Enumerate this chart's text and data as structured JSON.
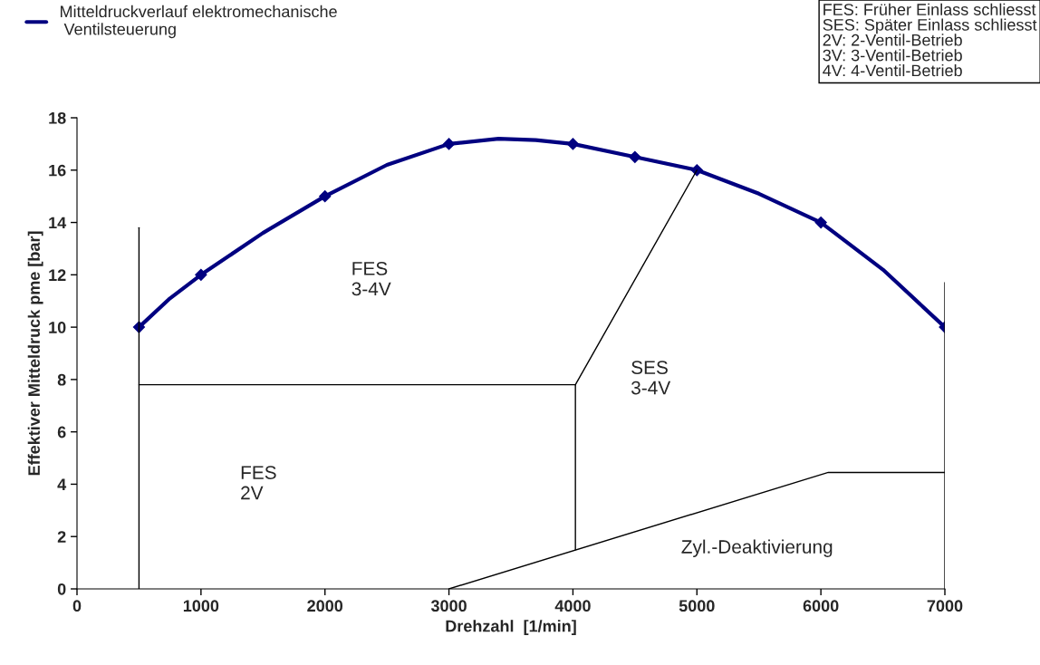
{
  "chart_data": {
    "type": "line",
    "xlabel": "Drehzahl  [1/min]",
    "ylabel": "Effektiver Mitteldruck pme [bar]",
    "xlim": [
      0,
      7000
    ],
    "xticks": [
      0,
      1000,
      2000,
      3000,
      4000,
      5000,
      6000,
      7000
    ],
    "ylim": [
      0,
      18
    ],
    "yticks": [
      0,
      2,
      4,
      6,
      8,
      10,
      12,
      14,
      16,
      18
    ],
    "grid": false,
    "legend": "top left",
    "marker": "diamond",
    "line_style": "solid",
    "series": [
      {
        "name": "Mitteldruckverlauf elektromechanische\n Ventilsteuerung",
        "color": "#000080",
        "marker": "none",
        "x": [
          500,
          750,
          1000,
          1500,
          2000,
          2500,
          3000,
          3400,
          3700,
          4000,
          4500,
          5000,
          5500,
          6000,
          6500,
          7000
        ],
        "values": [
          10,
          11.1,
          12,
          13.6,
          15,
          16.2,
          17,
          17.2,
          17.15,
          17,
          16.5,
          16,
          15.1,
          14,
          12.2,
          10
        ]
      },
      {
        "type": "scatter",
        "color": "#000080",
        "x": [
          500,
          1000,
          2000,
          3000,
          4000,
          4500,
          5000,
          6000,
          7000
        ],
        "values": [
          10,
          12,
          15,
          17,
          17,
          16.5,
          16,
          14,
          10
        ]
      },
      {
        "color": "#000000",
        "marker": "none",
        "x": [
          500,
          500
        ],
        "values": [
          0,
          13.8
        ]
      },
      {
        "color": "#000000",
        "marker": "none",
        "x": [
          7000,
          7000
        ],
        "values": [
          0,
          4.45
        ]
      },
      {
        "color": "#000000",
        "marker": "none",
        "x": [
          500,
          4020,
          4020
        ],
        "values": [
          7.8,
          7.8,
          1.5
        ]
      },
      {
        "color": "#000000",
        "marker": "none",
        "x": [
          4020,
          5000
        ],
        "values": [
          7.8,
          16
        ]
      },
      {
        "color": "#000000",
        "marker": "none",
        "x": [
          3000,
          6060,
          7000,
          7000
        ],
        "values": [
          0,
          4.45,
          4.45,
          11.7
        ]
      }
    ],
    "annotations": [
      "FES\n3-4V",
      "SES\n3-4V",
      "FES\n2V",
      "Zyl.-Deaktivierung",
      "FES: Früher Einlass schliesst\nSES: Später Einlass schliesst\n2V: 2-Ventil-Betrieb\n3V: 3-Ventil-Betrieb\n4V: 4-Ventil-Betrieb"
    ]
  }
}
